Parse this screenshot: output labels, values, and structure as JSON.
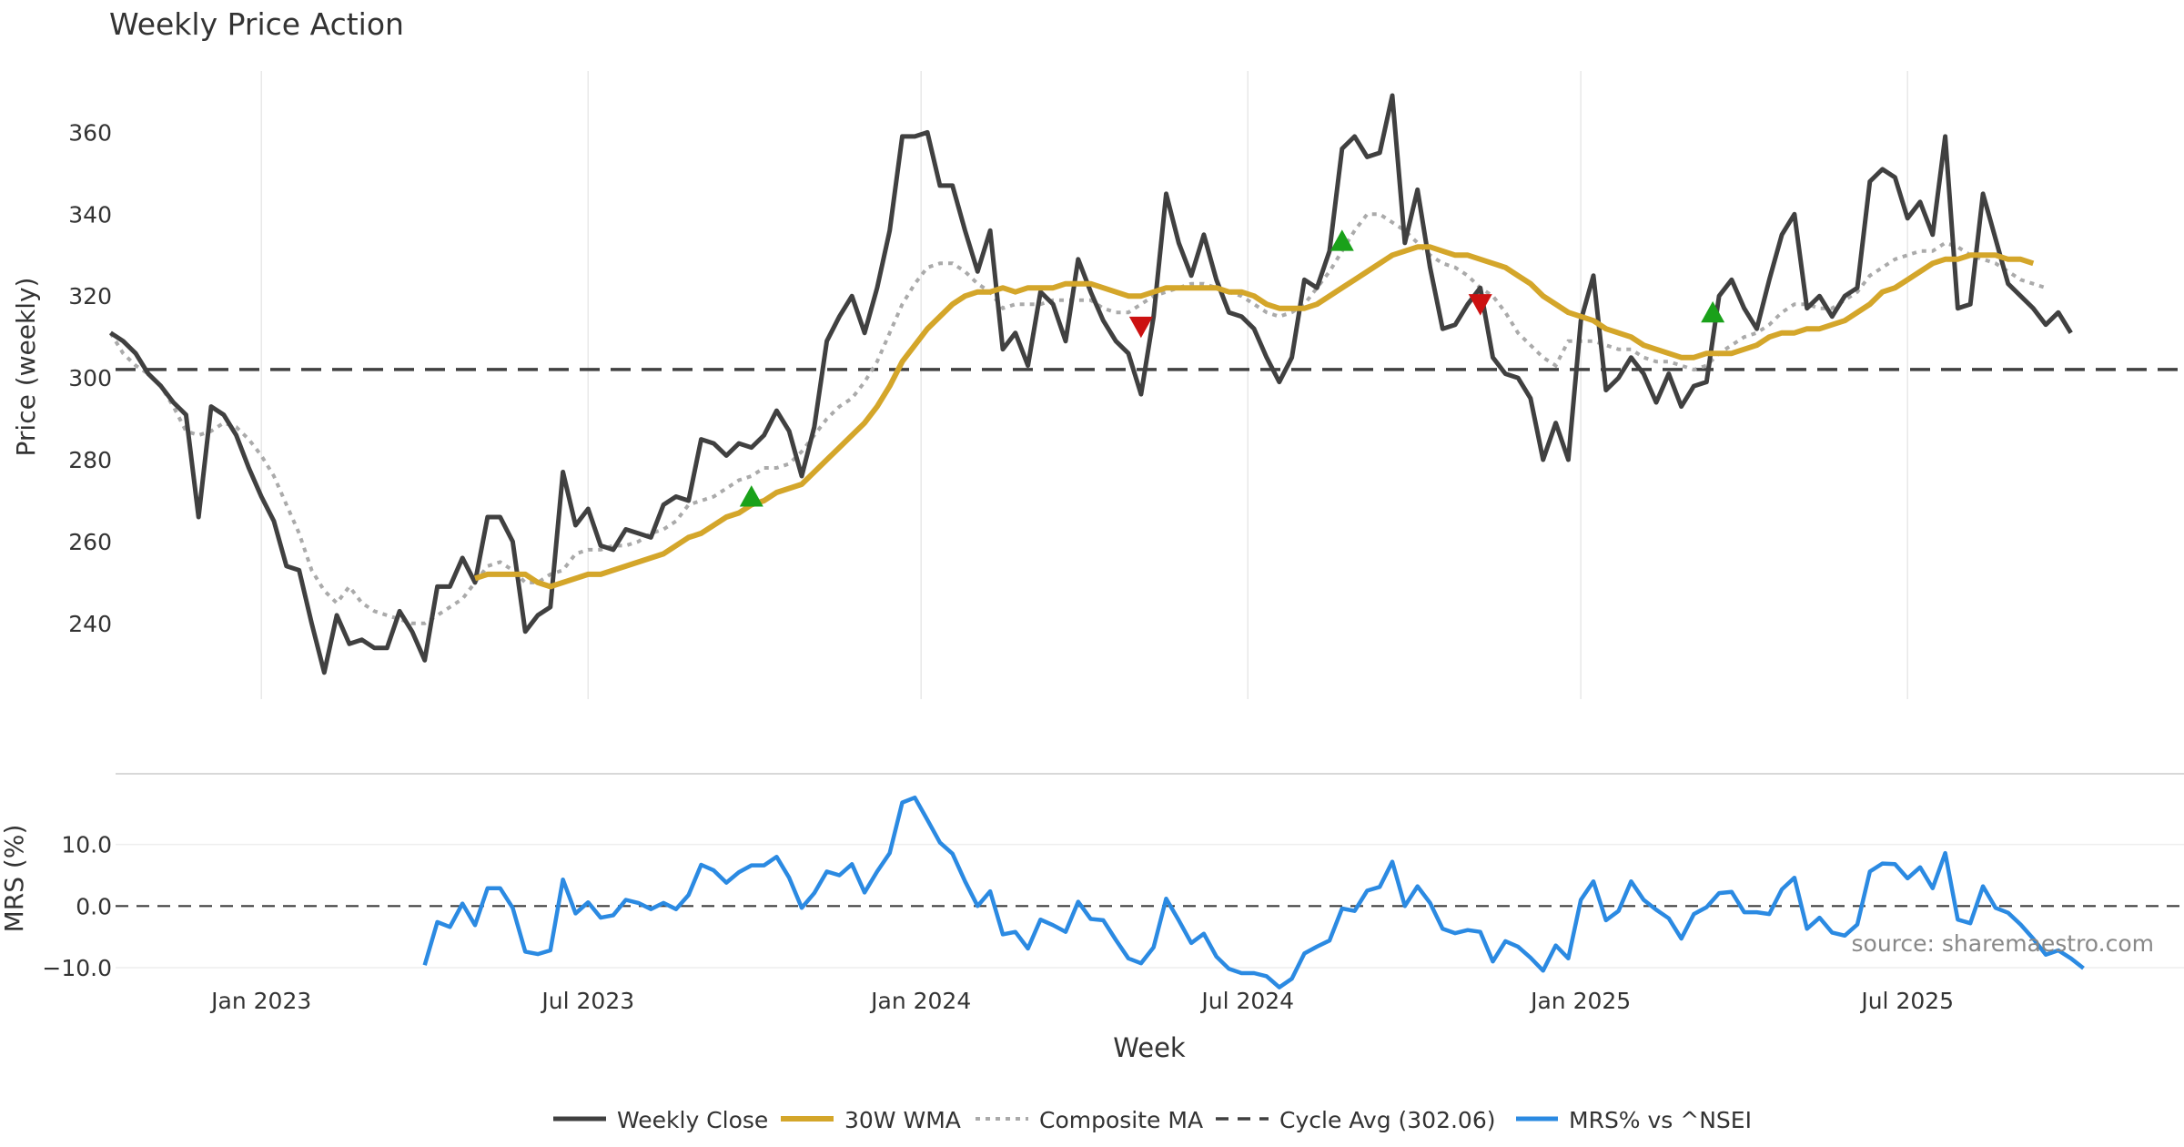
{
  "chart_data": {
    "type": "line",
    "title": "Weekly Price Action",
    "xlabel": "Week",
    "source": "source: sharemaestro.com",
    "x_ticks": [
      {
        "label": "Jan 2023",
        "week": 12
      },
      {
        "label": "Jul 2023",
        "week": 38
      },
      {
        "label": "Jan 2024",
        "week": 64.5
      },
      {
        "label": "Jul 2024",
        "week": 90.5
      },
      {
        "label": "Jan 2025",
        "week": 117
      },
      {
        "label": "Jul 2025",
        "week": 143
      }
    ],
    "week_range": [
      -8.8,
      165
    ],
    "price_panel": {
      "ylabel": "Price (weekly)",
      "ylim": [
        221.5,
        375
      ],
      "yticks": [
        240,
        260,
        280,
        300,
        320,
        340,
        360
      ],
      "cycle_avg": 302.06,
      "weekly_close": [
        311,
        309,
        306,
        301,
        298,
        294,
        291,
        266,
        293,
        291,
        286,
        278,
        271,
        265,
        254,
        253,
        240,
        228,
        242,
        235,
        236,
        234,
        234,
        243,
        238,
        231,
        249,
        249,
        256,
        250,
        266,
        266,
        260,
        238,
        242,
        244,
        277,
        264,
        268,
        259,
        258,
        263,
        262,
        261,
        269,
        271,
        270,
        285,
        284,
        281,
        284,
        283,
        286,
        292,
        287,
        276,
        288,
        309,
        315,
        320,
        311,
        322,
        336,
        359,
        359,
        360,
        347,
        347,
        336,
        326,
        336,
        307,
        311,
        303,
        321,
        318,
        309,
        329,
        321,
        314,
        309,
        306,
        296,
        315,
        345,
        333,
        325,
        335,
        324,
        316,
        315,
        312,
        305,
        299,
        305,
        324,
        322,
        331,
        356,
        359,
        354,
        355,
        369,
        333,
        346,
        327,
        312,
        313,
        318,
        322,
        305,
        301,
        300,
        295,
        280,
        289,
        280,
        314,
        325,
        297,
        300,
        305,
        301,
        294,
        301,
        293,
        298,
        299,
        320,
        324,
        317,
        312,
        324,
        335,
        340,
        317,
        320,
        315,
        320,
        322,
        348,
        351,
        349,
        339,
        343,
        335,
        359,
        317,
        318,
        345,
        334,
        323,
        320,
        317,
        313,
        316,
        311
      ],
      "wma_30w": {
        "start_week": 29,
        "values": [
          251,
          252,
          252,
          252,
          252,
          250,
          249,
          250,
          251,
          252,
          252,
          253,
          254,
          255,
          256,
          257,
          259,
          261,
          262,
          264,
          266,
          267,
          269,
          270,
          272,
          273,
          274,
          277,
          280,
          283,
          286,
          289,
          293,
          298,
          304,
          308,
          312,
          315,
          318,
          320,
          321,
          321,
          322,
          321,
          322,
          322,
          322,
          323,
          323,
          323,
          322,
          321,
          320,
          320,
          321,
          322,
          322,
          322,
          322,
          322,
          321,
          321,
          320,
          318,
          317,
          317,
          317,
          318,
          320,
          322,
          324,
          326,
          328,
          330,
          331,
          332,
          332,
          331,
          330,
          330,
          329,
          328,
          327,
          325,
          323,
          320,
          318,
          316,
          315,
          314,
          312,
          311,
          310,
          308,
          307,
          306,
          305,
          305,
          306,
          306,
          306,
          307,
          308,
          310,
          311,
          311,
          312,
          312,
          313,
          314,
          316,
          318,
          321,
          322,
          324,
          326,
          328,
          329,
          329,
          330,
          330,
          330,
          329,
          329,
          328
        ]
      },
      "composite_ma": [
        311,
        306,
        303,
        301,
        298,
        293,
        287,
        286,
        287,
        289,
        288,
        285,
        281,
        276,
        269,
        262,
        253,
        248,
        245,
        249,
        245,
        243,
        242,
        241,
        240,
        240,
        242,
        244,
        246,
        250,
        254,
        255,
        253,
        250,
        250,
        252,
        253,
        257,
        258,
        258,
        259,
        259,
        260,
        262,
        263,
        265,
        269,
        270,
        271,
        273,
        275,
        276,
        278,
        278,
        279,
        282,
        286,
        290,
        293,
        295,
        299,
        304,
        311,
        318,
        323,
        327,
        328,
        328,
        326,
        323,
        321,
        317,
        318,
        318,
        318,
        319,
        319,
        319,
        319,
        317,
        316,
        316,
        318,
        320,
        321,
        322,
        323,
        323,
        322,
        321,
        320,
        318,
        316,
        315,
        316,
        318,
        322,
        326,
        331,
        336,
        340,
        340,
        338,
        336,
        333,
        330,
        328,
        327,
        325,
        322,
        320,
        316,
        311,
        308,
        305,
        303,
        309,
        309,
        309,
        308,
        307,
        307,
        305,
        304,
        304,
        303,
        302,
        303,
        306,
        308,
        310,
        311,
        313,
        316,
        318,
        318,
        317,
        317,
        319,
        321,
        325,
        327,
        329,
        330,
        331,
        331,
        333,
        332,
        330,
        329,
        328,
        326,
        324,
        323,
        322
      ],
      "buy_markers": [
        {
          "week": 51,
          "price": 271
        },
        {
          "week": 98,
          "price": 333.5
        },
        {
          "week": 127.5,
          "price": 316
        }
      ],
      "sell_markers": [
        {
          "week": 82,
          "price": 312.5
        },
        {
          "week": 109,
          "price": 318
        }
      ]
    },
    "mrs_panel": {
      "ylabel": "MRS (%)",
      "ylim": [
        -14,
        20
      ],
      "yticks": [
        -10.0,
        0.0,
        10.0
      ],
      "ytick_labels": [
        "−10.0",
        "0.0",
        "10.0"
      ],
      "zero_line": 0,
      "start_week": 25,
      "values": [
        -9.6,
        -2.6,
        -3.4,
        0.4,
        -3.1,
        2.9,
        2.9,
        -0.3,
        -7.4,
        -7.8,
        -7.2,
        4.3,
        -1.2,
        0.6,
        -1.9,
        -1.5,
        1.0,
        0.5,
        -0.5,
        0.5,
        -0.5,
        1.8,
        6.7,
        5.8,
        3.8,
        5.5,
        6.6,
        6.6,
        8.0,
        4.6,
        -0.3,
        2.1,
        5.6,
        5.0,
        6.8,
        2.2,
        5.6,
        8.6,
        16.8,
        17.6,
        14.0,
        10.3,
        8.5,
        4.0,
        0.0,
        2.4,
        -4.6,
        -4.2,
        -6.9,
        -2.2,
        -3.1,
        -4.2,
        0.7,
        -2.1,
        -2.3,
        -5.5,
        -8.5,
        -9.3,
        -6.7,
        1.2,
        -2.3,
        -6.0,
        -4.5,
        -8.2,
        -10.2,
        -10.9,
        -10.9,
        -11.4,
        -13.2,
        -11.8,
        -7.7,
        -6.6,
        -5.6,
        -0.4,
        -0.8,
        2.5,
        3.1,
        7.2,
        0.0,
        3.2,
        0.5,
        -3.7,
        -4.4,
        -3.9,
        -4.2,
        -9.0,
        -5.7,
        -6.6,
        -8.4,
        -10.5,
        -6.4,
        -8.5,
        1.0,
        4.0,
        -2.3,
        -0.8,
        4.0,
        1.0,
        -0.6,
        -2.0,
        -5.3,
        -1.3,
        -0.2,
        2.1,
        2.3,
        -1.0,
        -1.0,
        -1.3,
        2.7,
        4.6,
        -3.7,
        -1.9,
        -4.3,
        -4.8,
        -3.0,
        5.6,
        6.9,
        6.8,
        4.5,
        6.3,
        2.9,
        8.6,
        -2.2,
        -2.8,
        3.2,
        -0.3,
        -1.1,
        -3.0,
        -5.3,
        -7.9,
        -7.2,
        -8.5,
        -10.1
      ]
    },
    "legend": [
      "Weekly Close",
      "30W WMA",
      "Composite MA",
      "Cycle Avg (302.06)",
      "MRS% vs ^NSEI"
    ],
    "colors": {
      "close": "#404040",
      "wma": "#d4a62a",
      "composite": "#aaaaaa",
      "cycle": "#404040",
      "mrs": "#2b8ae2",
      "buy": "#1aa11a",
      "sell": "#cc1111",
      "grid": "#e8e8e8",
      "text": "#333333",
      "source": "#888888"
    }
  }
}
